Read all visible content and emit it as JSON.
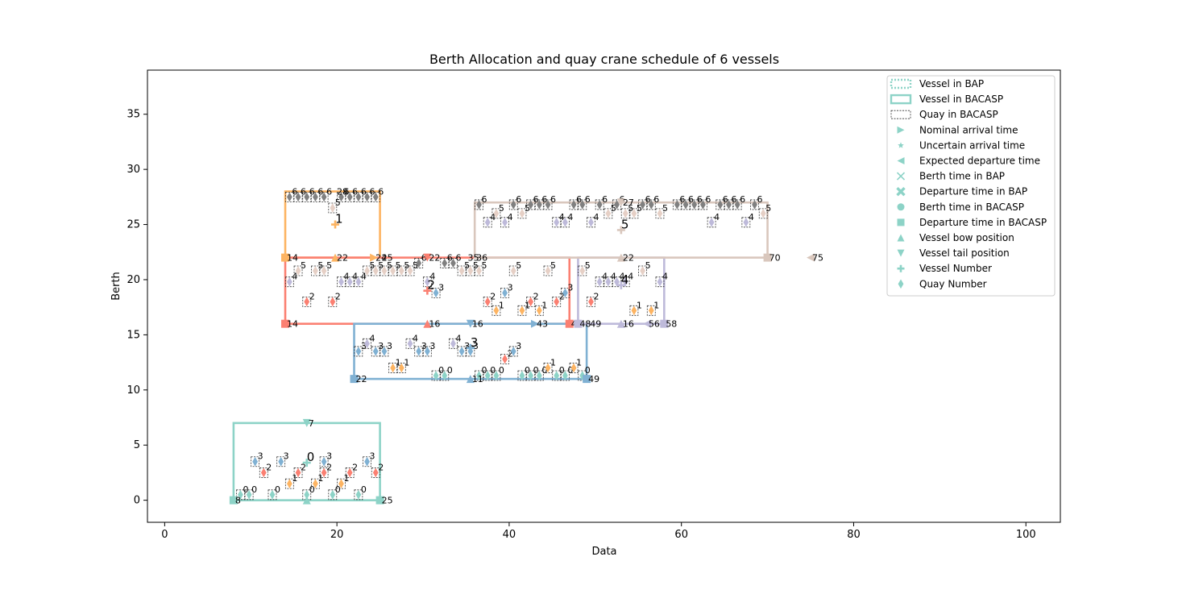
{
  "chart_data": {
    "type": "scatter",
    "title": "Berth Allocation and quay crane schedule  of 6 vessels",
    "xlabel": "Data",
    "ylabel": "Berth",
    "xlim": [
      -2,
      104
    ],
    "ylim": [
      -2,
      39
    ],
    "xticks": [
      0,
      20,
      40,
      60,
      80,
      100
    ],
    "yticks": [
      0,
      5,
      10,
      15,
      20,
      25,
      30,
      35
    ],
    "grid": false,
    "legend_position": "top-right",
    "legend": [
      {
        "label": "Vessel in BAP",
        "kind": "dotted-rect"
      },
      {
        "label": "Vessel in BACASP",
        "kind": "solid-rect"
      },
      {
        "label": "Quay in BACASP",
        "kind": "dashed-rect"
      },
      {
        "label": "Nominal arrival time",
        "kind": "tri-right"
      },
      {
        "label": "Uncertain arrival time",
        "kind": "star"
      },
      {
        "label": "Expected departure time",
        "kind": "tri-left"
      },
      {
        "label": "Berth time in BAP",
        "kind": "x"
      },
      {
        "label": "Departure time in BAP",
        "kind": "x-bold"
      },
      {
        "label": "Berth time in BACASP",
        "kind": "circle"
      },
      {
        "label": "Departure time in BACASP",
        "kind": "square"
      },
      {
        "label": "Vessel bow position",
        "kind": "tri-up"
      },
      {
        "label": "Vessel tail position",
        "kind": "tri-down"
      },
      {
        "label": "Vessel Number",
        "kind": "plus"
      },
      {
        "label": "Quay Number",
        "kind": "diamond"
      }
    ],
    "colors": {
      "vessel0": "#8dd3c7",
      "vessel1": "#fdb462",
      "vessel2": "#fb8072",
      "vessel3": "#80b1d3",
      "vessel4": "#bebada",
      "vessel5": "#d9c7bd",
      "quay0": "#8dd3c7",
      "quay1": "#fdb462",
      "quay2": "#fb8072",
      "quay3": "#80b1d3",
      "quay4": "#bebada",
      "quay5": "#e6d0c6",
      "quay6": "#808080"
    },
    "vessels": [
      {
        "number": "0",
        "x0": 8,
        "x1": 25,
        "y0": 0,
        "y1": 7,
        "color": "#8dd3c7",
        "num_pos": [
          16.5,
          3.4
        ],
        "labels": [
          {
            "text": "8",
            "x": 8,
            "y": 0
          },
          {
            "text": "25",
            "x": 25,
            "y": 0
          },
          {
            "text": "7",
            "x": 16.5,
            "y": 7
          }
        ],
        "markers": [
          {
            "kind": "tri-up",
            "x": 16.5,
            "y": 0
          },
          {
            "kind": "square",
            "x": 8,
            "y": 0
          },
          {
            "kind": "square",
            "x": 25,
            "y": 0
          },
          {
            "kind": "tri-down",
            "x": 16.5,
            "y": 7
          }
        ]
      },
      {
        "number": "1",
        "x0": 14,
        "x1": 25,
        "y0": 22,
        "y1": 28,
        "color": "#fdb462",
        "num_pos": [
          19.8,
          25
        ],
        "labels": [
          {
            "text": "14",
            "x": 14,
            "y": 22
          },
          {
            "text": "22",
            "x": 19.8,
            "y": 22
          },
          {
            "text": "24",
            "x": 24.3,
            "y": 22
          },
          {
            "text": "25",
            "x": 25,
            "y": 22
          },
          {
            "text": "28",
            "x": 19.8,
            "y": 28
          }
        ],
        "markers": [
          {
            "kind": "square",
            "x": 14,
            "y": 22
          },
          {
            "kind": "tri-up",
            "x": 19.8,
            "y": 22
          },
          {
            "kind": "tri-right",
            "x": 24.3,
            "y": 22
          }
        ]
      },
      {
        "number": "2",
        "x0": 14,
        "x1": 47,
        "y0": 16,
        "y1": 22,
        "color": "#fb8072",
        "num_pos": [
          30.5,
          19
        ],
        "labels": [
          {
            "text": "14",
            "x": 14,
            "y": 16
          },
          {
            "text": "16",
            "x": 30.5,
            "y": 16
          },
          {
            "text": "47",
            "x": 47,
            "y": 16
          },
          {
            "text": "22",
            "x": 30.5,
            "y": 22
          }
        ],
        "markers": [
          {
            "kind": "square",
            "x": 14,
            "y": 16
          },
          {
            "kind": "tri-up",
            "x": 30.5,
            "y": 16
          },
          {
            "kind": "square",
            "x": 47,
            "y": 16
          },
          {
            "kind": "tri-down",
            "x": 30.5,
            "y": 22
          }
        ]
      },
      {
        "number": "3",
        "x0": 22,
        "x1": 49,
        "y0": 11,
        "y1": 16,
        "color": "#80b1d3",
        "num_pos": [
          35.5,
          13.8
        ],
        "labels": [
          {
            "text": "22",
            "x": 22,
            "y": 11
          },
          {
            "text": "11",
            "x": 35.5,
            "y": 11
          },
          {
            "text": "49",
            "x": 49,
            "y": 11
          },
          {
            "text": "16",
            "x": 35.5,
            "y": 16
          },
          {
            "text": "43",
            "x": 43,
            "y": 16
          }
        ],
        "markers": [
          {
            "kind": "square",
            "x": 22,
            "y": 11
          },
          {
            "kind": "tri-up",
            "x": 35.5,
            "y": 11
          },
          {
            "kind": "square",
            "x": 49,
            "y": 11
          },
          {
            "kind": "tri-down",
            "x": 35.5,
            "y": 16
          },
          {
            "kind": "tri-right",
            "x": 43,
            "y": 16
          }
        ]
      },
      {
        "number": "4",
        "x0": 48,
        "x1": 58,
        "y0": 16,
        "y1": 22,
        "color": "#bebada",
        "num_pos": [
          53,
          19.5
        ],
        "labels": [
          {
            "text": "48",
            "x": 48,
            "y": 16
          },
          {
            "text": "49",
            "x": 49.2,
            "y": 16
          },
          {
            "text": "16",
            "x": 53,
            "y": 16
          },
          {
            "text": "56",
            "x": 56,
            "y": 16
          },
          {
            "text": "58",
            "x": 58,
            "y": 16
          }
        ],
        "markers": [
          {
            "kind": "square",
            "x": 48,
            "y": 16
          },
          {
            "kind": "tri-up",
            "x": 53,
            "y": 16
          },
          {
            "kind": "tri-left",
            "x": 56,
            "y": 16
          },
          {
            "kind": "square",
            "x": 58,
            "y": 16
          }
        ]
      },
      {
        "number": "5",
        "x0": 36,
        "x1": 70,
        "y0": 22,
        "y1": 27,
        "color": "#d9c7bd",
        "num_pos": [
          53,
          24.5
        ],
        "labels": [
          {
            "text": "35",
            "x": 35,
            "y": 22
          },
          {
            "text": "36",
            "x": 36,
            "y": 22
          },
          {
            "text": "22",
            "x": 53,
            "y": 22
          },
          {
            "text": "70",
            "x": 70,
            "y": 22
          },
          {
            "text": "75",
            "x": 75,
            "y": 22
          },
          {
            "text": "27",
            "x": 53,
            "y": 27
          }
        ],
        "markers": [
          {
            "kind": "square",
            "x": 70,
            "y": 22
          },
          {
            "kind": "tri-up",
            "x": 53,
            "y": 22
          },
          {
            "kind": "tri-left",
            "x": 75,
            "y": 22
          },
          {
            "kind": "tri-down",
            "x": 53,
            "y": 27
          }
        ]
      }
    ],
    "quays": [
      {
        "q": "0",
        "x": 8.8,
        "y": 0.5
      },
      {
        "q": "0",
        "x": 9.8,
        "y": 0.5
      },
      {
        "q": "0",
        "x": 12.5,
        "y": 0.5
      },
      {
        "q": "0",
        "x": 16.5,
        "y": 0.5
      },
      {
        "q": "0",
        "x": 19.5,
        "y": 0.5
      },
      {
        "q": "0",
        "x": 22.5,
        "y": 0.5
      },
      {
        "q": "1",
        "x": 14.5,
        "y": 1.5
      },
      {
        "q": "1",
        "x": 17.5,
        "y": 1.5
      },
      {
        "q": "1",
        "x": 20.5,
        "y": 1.5
      },
      {
        "q": "2",
        "x": 11.5,
        "y": 2.5
      },
      {
        "q": "2",
        "x": 15.5,
        "y": 2.5
      },
      {
        "q": "2",
        "x": 18.5,
        "y": 2.5
      },
      {
        "q": "2",
        "x": 21.5,
        "y": 2.5
      },
      {
        "q": "2",
        "x": 24.5,
        "y": 2.5
      },
      {
        "q": "3",
        "x": 10.5,
        "y": 3.5
      },
      {
        "q": "3",
        "x": 13.5,
        "y": 3.5
      },
      {
        "q": "3",
        "x": 18.5,
        "y": 3.5
      },
      {
        "q": "3",
        "x": 23.5,
        "y": 3.5
      },
      {
        "q": "6",
        "x": 14.5,
        "y": 27.5
      },
      {
        "q": "6",
        "x": 15.5,
        "y": 27.5
      },
      {
        "q": "6",
        "x": 16.5,
        "y": 27.5
      },
      {
        "q": "6",
        "x": 17.5,
        "y": 27.5
      },
      {
        "q": "6",
        "x": 18.5,
        "y": 27.5
      },
      {
        "q": "6",
        "x": 20.5,
        "y": 27.5
      },
      {
        "q": "6",
        "x": 21.5,
        "y": 27.5
      },
      {
        "q": "6",
        "x": 22.5,
        "y": 27.5
      },
      {
        "q": "6",
        "x": 23.5,
        "y": 27.5
      },
      {
        "q": "6",
        "x": 24.5,
        "y": 27.5
      },
      {
        "q": "5",
        "x": 19.5,
        "y": 26.5
      },
      {
        "q": "4",
        "x": 14.5,
        "y": 19.8
      },
      {
        "q": "5",
        "x": 15.5,
        "y": 20.8
      },
      {
        "q": "5",
        "x": 17.5,
        "y": 20.8
      },
      {
        "q": "5",
        "x": 18.5,
        "y": 20.8
      },
      {
        "q": "4",
        "x": 20.5,
        "y": 19.8
      },
      {
        "q": "4",
        "x": 21.5,
        "y": 19.8
      },
      {
        "q": "4",
        "x": 22.5,
        "y": 19.8
      },
      {
        "q": "5",
        "x": 23.5,
        "y": 20.8
      },
      {
        "q": "5",
        "x": 24.5,
        "y": 20.8
      },
      {
        "q": "5",
        "x": 25.5,
        "y": 20.8
      },
      {
        "q": "5",
        "x": 26.5,
        "y": 20.8
      },
      {
        "q": "5",
        "x": 27.5,
        "y": 20.8
      },
      {
        "q": "5",
        "x": 28.5,
        "y": 20.8
      },
      {
        "q": "6",
        "x": 29.5,
        "y": 21.5
      },
      {
        "q": "4",
        "x": 30.5,
        "y": 19.8
      },
      {
        "q": "2",
        "x": 16.5,
        "y": 18
      },
      {
        "q": "2",
        "x": 19.5,
        "y": 18
      },
      {
        "q": "3",
        "x": 31.5,
        "y": 18.8
      },
      {
        "q": "6",
        "x": 32.5,
        "y": 21.5
      },
      {
        "q": "6",
        "x": 33.5,
        "y": 21.5
      },
      {
        "q": "5",
        "x": 34.5,
        "y": 20.8
      },
      {
        "q": "5",
        "x": 35.5,
        "y": 20.8
      },
      {
        "q": "5",
        "x": 36.5,
        "y": 20.8
      },
      {
        "q": "2",
        "x": 37.5,
        "y": 18
      },
      {
        "q": "1",
        "x": 38.5,
        "y": 17.2
      },
      {
        "q": "3",
        "x": 39.5,
        "y": 18.8
      },
      {
        "q": "5",
        "x": 40.5,
        "y": 20.8
      },
      {
        "q": "1",
        "x": 41.5,
        "y": 17.2
      },
      {
        "q": "2",
        "x": 42.5,
        "y": 18
      },
      {
        "q": "1",
        "x": 43.5,
        "y": 17.2
      },
      {
        "q": "5",
        "x": 44.5,
        "y": 20.8
      },
      {
        "q": "2",
        "x": 45.5,
        "y": 18
      },
      {
        "q": "3",
        "x": 46.5,
        "y": 18.8
      },
      {
        "q": "3",
        "x": 22.5,
        "y": 13.5
      },
      {
        "q": "4",
        "x": 23.5,
        "y": 14.2
      },
      {
        "q": "3",
        "x": 24.5,
        "y": 13.5
      },
      {
        "q": "3",
        "x": 25.5,
        "y": 13.5
      },
      {
        "q": "1",
        "x": 26.5,
        "y": 12
      },
      {
        "q": "1",
        "x": 27.5,
        "y": 12
      },
      {
        "q": "4",
        "x": 28.5,
        "y": 14.2
      },
      {
        "q": "3",
        "x": 29.5,
        "y": 13.5
      },
      {
        "q": "3",
        "x": 30.5,
        "y": 13.5
      },
      {
        "q": "0",
        "x": 31.5,
        "y": 11.3
      },
      {
        "q": "0",
        "x": 32.5,
        "y": 11.3
      },
      {
        "q": "4",
        "x": 33.5,
        "y": 14.2
      },
      {
        "q": "3",
        "x": 34.5,
        "y": 13.5
      },
      {
        "q": "3",
        "x": 35.5,
        "y": 13.5
      },
      {
        "q": "0",
        "x": 36.5,
        "y": 11.3
      },
      {
        "q": "0",
        "x": 37.5,
        "y": 11.3
      },
      {
        "q": "0",
        "x": 38.5,
        "y": 11.3
      },
      {
        "q": "2",
        "x": 39.5,
        "y": 12.8
      },
      {
        "q": "3",
        "x": 40.5,
        "y": 13.5
      },
      {
        "q": "0",
        "x": 41.5,
        "y": 11.3
      },
      {
        "q": "0",
        "x": 42.5,
        "y": 11.3
      },
      {
        "q": "0",
        "x": 43.5,
        "y": 11.3
      },
      {
        "q": "1",
        "x": 44.5,
        "y": 12
      },
      {
        "q": "0",
        "x": 45.5,
        "y": 11.3
      },
      {
        "q": "0",
        "x": 46.5,
        "y": 11.3
      },
      {
        "q": "1",
        "x": 47.5,
        "y": 12
      },
      {
        "q": "0",
        "x": 48.5,
        "y": 11.3
      },
      {
        "q": "5",
        "x": 48.5,
        "y": 20.8
      },
      {
        "q": "2",
        "x": 49.5,
        "y": 18
      },
      {
        "q": "4",
        "x": 50.5,
        "y": 19.8
      },
      {
        "q": "4",
        "x": 51.5,
        "y": 19.8
      },
      {
        "q": "4",
        "x": 52.5,
        "y": 19.8
      },
      {
        "q": "4",
        "x": 53.5,
        "y": 19.8
      },
      {
        "q": "1",
        "x": 54.5,
        "y": 17.2
      },
      {
        "q": "5",
        "x": 55.5,
        "y": 20.8
      },
      {
        "q": "1",
        "x": 56.5,
        "y": 17.2
      },
      {
        "q": "4",
        "x": 57.5,
        "y": 19.8
      },
      {
        "q": "6",
        "x": 36.5,
        "y": 26.8
      },
      {
        "q": "4",
        "x": 37.5,
        "y": 25.2
      },
      {
        "q": "5",
        "x": 38.5,
        "y": 26
      },
      {
        "q": "4",
        "x": 39.5,
        "y": 25.2
      },
      {
        "q": "6",
        "x": 40.5,
        "y": 26.8
      },
      {
        "q": "5",
        "x": 41.5,
        "y": 26
      },
      {
        "q": "6",
        "x": 42.5,
        "y": 26.8
      },
      {
        "q": "6",
        "x": 43.5,
        "y": 26.8
      },
      {
        "q": "6",
        "x": 44.5,
        "y": 26.8
      },
      {
        "q": "4",
        "x": 45.5,
        "y": 25.2
      },
      {
        "q": "4",
        "x": 46.5,
        "y": 25.2
      },
      {
        "q": "6",
        "x": 47.5,
        "y": 26.8
      },
      {
        "q": "6",
        "x": 48.5,
        "y": 26.8
      },
      {
        "q": "4",
        "x": 49.5,
        "y": 25.2
      },
      {
        "q": "6",
        "x": 50.5,
        "y": 26.8
      },
      {
        "q": "5",
        "x": 51.5,
        "y": 26
      },
      {
        "q": "6",
        "x": 52.5,
        "y": 26.8
      },
      {
        "q": "5",
        "x": 53.5,
        "y": 26
      },
      {
        "q": "5",
        "x": 54.5,
        "y": 26
      },
      {
        "q": "6",
        "x": 55.5,
        "y": 26.8
      },
      {
        "q": "6",
        "x": 56.5,
        "y": 26.8
      },
      {
        "q": "5",
        "x": 57.5,
        "y": 26
      },
      {
        "q": "6",
        "x": 59.5,
        "y": 26.8
      },
      {
        "q": "6",
        "x": 60.5,
        "y": 26.8
      },
      {
        "q": "6",
        "x": 61.5,
        "y": 26.8
      },
      {
        "q": "6",
        "x": 62.5,
        "y": 26.8
      },
      {
        "q": "4",
        "x": 63.5,
        "y": 25.2
      },
      {
        "q": "6",
        "x": 64.5,
        "y": 26.8
      },
      {
        "q": "6",
        "x": 65.5,
        "y": 26.8
      },
      {
        "q": "6",
        "x": 66.5,
        "y": 26.8
      },
      {
        "q": "4",
        "x": 67.5,
        "y": 25.2
      },
      {
        "q": "6",
        "x": 68.5,
        "y": 26.8
      },
      {
        "q": "5",
        "x": 69.5,
        "y": 26
      }
    ]
  }
}
